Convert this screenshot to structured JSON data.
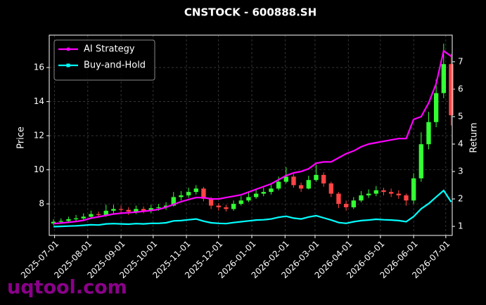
{
  "chart_data": {
    "type": "candlestick",
    "title": "CNSTOCK - 600888.SH",
    "ylabel": "Price",
    "y2label": "Return",
    "watermark": "uqtool.com",
    "dates": [
      "2025-06-30",
      "2025-07-07",
      "2025-07-14",
      "2025-07-21",
      "2025-07-28",
      "2025-08-04",
      "2025-08-11",
      "2025-08-18",
      "2025-08-25",
      "2025-09-01",
      "2025-09-08",
      "2025-09-15",
      "2025-09-22",
      "2025-09-29",
      "2025-10-06",
      "2025-10-13",
      "2025-10-20",
      "2025-10-27",
      "2025-11-03",
      "2025-11-10",
      "2025-11-17",
      "2025-11-24",
      "2025-12-01",
      "2025-12-08",
      "2025-12-15",
      "2025-12-22",
      "2025-12-29",
      "2026-01-05",
      "2026-01-12",
      "2026-01-19",
      "2026-01-26",
      "2026-02-02",
      "2026-02-09",
      "2026-02-16",
      "2026-02-23",
      "2026-03-02",
      "2026-03-09",
      "2026-03-16",
      "2026-03-23",
      "2026-03-30",
      "2026-04-06",
      "2026-04-13",
      "2026-04-20",
      "2026-04-27",
      "2026-05-04",
      "2026-05-11",
      "2026-05-18",
      "2026-05-25",
      "2026-06-01",
      "2026-06-08",
      "2026-06-15",
      "2026-06-22",
      "2026-06-29",
      "2026-07-06"
    ],
    "open": [
      6.85,
      6.95,
      7.0,
      7.1,
      7.15,
      7.25,
      7.4,
      7.35,
      7.6,
      7.7,
      7.65,
      7.55,
      7.7,
      7.6,
      7.75,
      7.8,
      7.9,
      8.4,
      8.5,
      8.7,
      8.9,
      8.3,
      7.9,
      7.8,
      7.7,
      8.0,
      8.2,
      8.4,
      8.6,
      8.7,
      8.9,
      9.3,
      9.6,
      9.1,
      8.9,
      9.4,
      9.7,
      9.2,
      8.6,
      8.0,
      7.8,
      8.2,
      8.5,
      8.6,
      8.8,
      8.7,
      8.6,
      8.5,
      8.2,
      9.5,
      11.5,
      12.8,
      14.5,
      16.2
    ],
    "high": [
      7.1,
      7.15,
      7.25,
      7.35,
      7.45,
      7.6,
      7.55,
      7.95,
      7.95,
      7.9,
      7.8,
      7.9,
      7.85,
      7.95,
      8.0,
      8.1,
      8.7,
      8.75,
      8.95,
      9.1,
      9.0,
      8.4,
      8.05,
      7.95,
      8.2,
      8.45,
      8.65,
      8.85,
      8.95,
      9.15,
      9.6,
      10.15,
      9.75,
      9.25,
      9.65,
      10.3,
      9.85,
      9.3,
      8.7,
      8.2,
      8.4,
      8.75,
      8.85,
      9.05,
      8.95,
      8.9,
      8.8,
      8.6,
      9.8,
      12.2,
      13.4,
      15.3,
      17.4,
      16.8
    ],
    "low": [
      6.75,
      6.85,
      6.9,
      7.0,
      7.05,
      7.15,
      7.2,
      7.25,
      7.45,
      7.45,
      7.35,
      7.4,
      7.45,
      7.45,
      7.6,
      7.65,
      7.85,
      8.2,
      8.35,
      8.55,
      8.15,
      7.7,
      7.6,
      7.55,
      7.6,
      7.9,
      8.1,
      8.3,
      8.45,
      8.55,
      8.8,
      9.2,
      8.95,
      8.7,
      8.85,
      9.3,
      9.0,
      8.4,
      7.75,
      7.6,
      7.7,
      8.1,
      8.35,
      8.45,
      8.5,
      8.4,
      8.3,
      7.9,
      8.0,
      9.3,
      11.2,
      12.5,
      14.2,
      12.6
    ],
    "close": [
      6.95,
      7.0,
      7.1,
      7.15,
      7.25,
      7.4,
      7.35,
      7.6,
      7.7,
      7.65,
      7.55,
      7.7,
      7.6,
      7.75,
      7.8,
      7.9,
      8.4,
      8.5,
      8.7,
      8.9,
      8.3,
      7.9,
      7.8,
      7.7,
      8.0,
      8.2,
      8.4,
      8.6,
      8.7,
      8.9,
      9.3,
      9.6,
      9.1,
      8.9,
      9.4,
      9.7,
      9.2,
      8.6,
      8.0,
      7.8,
      8.2,
      8.5,
      8.6,
      8.8,
      8.7,
      8.6,
      8.5,
      8.2,
      9.5,
      11.5,
      12.8,
      14.5,
      16.2,
      13.2
    ],
    "up_color": "#33ff33",
    "down_color": "#ff4444",
    "series": [
      {
        "name": "AI Strategy",
        "color": "#ff00ff",
        "axis": "y2",
        "marker": "circle",
        "values": [
          1.1,
          1.12,
          1.15,
          1.18,
          1.22,
          1.3,
          1.35,
          1.4,
          1.45,
          1.48,
          1.5,
          1.52,
          1.55,
          1.58,
          1.62,
          1.7,
          1.8,
          1.9,
          1.98,
          2.05,
          2.05,
          2.0,
          2.0,
          2.05,
          2.1,
          2.15,
          2.25,
          2.35,
          2.45,
          2.55,
          2.7,
          2.85,
          2.95,
          3.0,
          3.1,
          3.3,
          3.35,
          3.35,
          3.5,
          3.65,
          3.75,
          3.9,
          4.0,
          4.05,
          4.1,
          4.15,
          4.2,
          4.2,
          4.9,
          5.0,
          5.5,
          6.2,
          7.4,
          7.2
        ]
      },
      {
        "name": "Buy-and-Hold",
        "color": "#00ffff",
        "axis": "y2",
        "marker": "square",
        "values": [
          0.99,
          1.0,
          1.01,
          1.02,
          1.04,
          1.06,
          1.05,
          1.09,
          1.1,
          1.09,
          1.08,
          1.1,
          1.09,
          1.11,
          1.11,
          1.13,
          1.2,
          1.21,
          1.24,
          1.27,
          1.19,
          1.13,
          1.11,
          1.1,
          1.14,
          1.17,
          1.2,
          1.23,
          1.24,
          1.27,
          1.33,
          1.37,
          1.3,
          1.27,
          1.34,
          1.39,
          1.31,
          1.23,
          1.14,
          1.11,
          1.17,
          1.21,
          1.23,
          1.26,
          1.24,
          1.23,
          1.21,
          1.17,
          1.36,
          1.64,
          1.83,
          2.07,
          2.31,
          1.89
        ]
      }
    ],
    "xlim": [
      "2025-06-26",
      "2026-07-07"
    ],
    "xticks": [
      "2025-07-01",
      "2025-08-01",
      "2025-09-01",
      "2025-10-01",
      "2025-11-01",
      "2025-12-01",
      "2026-01-01",
      "2026-02-01",
      "2026-03-01",
      "2026-04-01",
      "2026-05-01",
      "2026-06-01",
      "2026-07-01"
    ],
    "ylim": [
      6.15,
      17.9
    ],
    "yticks": [
      8,
      10,
      12,
      14,
      16
    ],
    "y2lim": [
      0.67,
      7.97
    ],
    "y2ticks": [
      1,
      2,
      3,
      4,
      5,
      6,
      7
    ],
    "grid": true,
    "legend": "upper left"
  }
}
